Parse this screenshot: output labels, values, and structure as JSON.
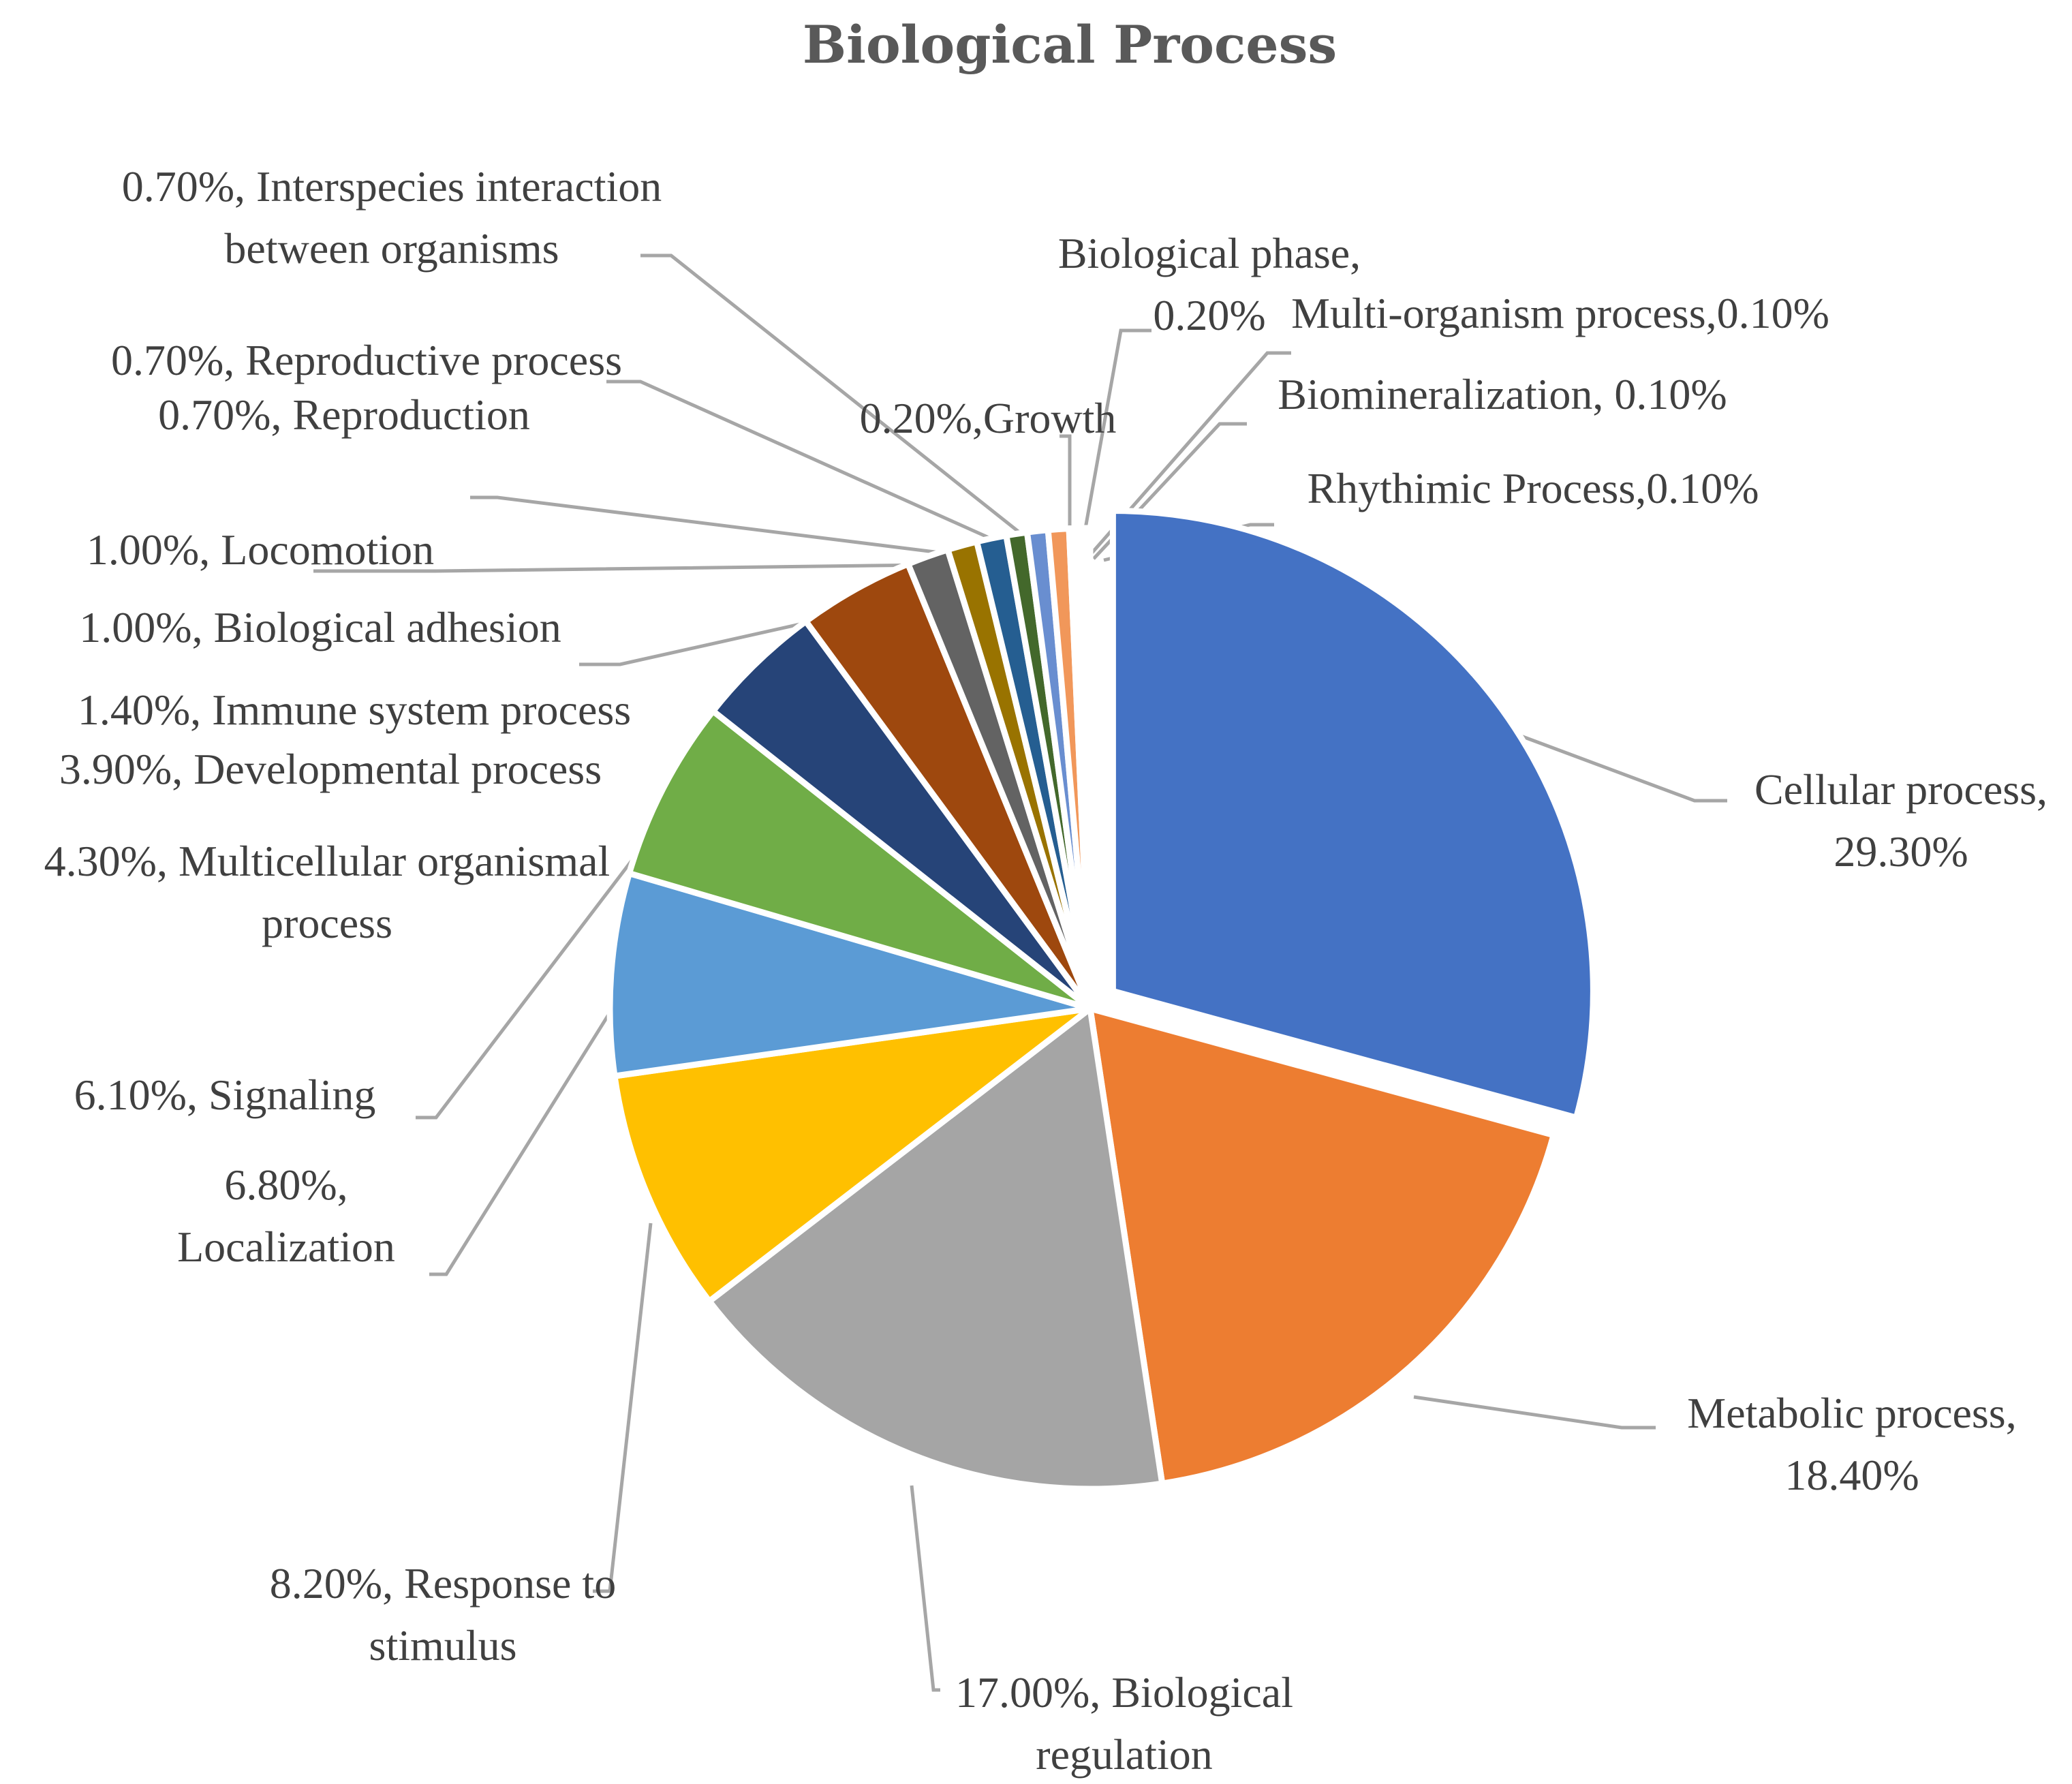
{
  "chart_data": {
    "type": "pie",
    "title": "Biological Process",
    "unit": "%",
    "slices": [
      {
        "name": "Cellular process",
        "value": 29.3,
        "color": "#4472C4",
        "label_lines": [
          "Cellular process,",
          "29.30%"
        ]
      },
      {
        "name": "Metabolic process",
        "value": 18.4,
        "color": "#ED7D31",
        "label_lines": [
          "Metabolic process,",
          "18.40%"
        ]
      },
      {
        "name": "Biological regulation",
        "value": 17.0,
        "color": "#A5A5A5",
        "label_lines": [
          "17.00%, Biological",
          "regulation"
        ]
      },
      {
        "name": "Response to stimulus",
        "value": 8.2,
        "color": "#FFC000",
        "label_lines": [
          "8.20%, Response to",
          "stimulus"
        ]
      },
      {
        "name": "Localization",
        "value": 6.8,
        "color": "#5B9BD5",
        "label_lines": [
          "6.80%,",
          "Localization"
        ]
      },
      {
        "name": "Signaling",
        "value": 6.1,
        "color": "#70AD47",
        "label_lines": [
          "6.10%, Signaling"
        ]
      },
      {
        "name": "Multicellular organismal process",
        "value": 4.3,
        "color": "#264478",
        "label_lines": [
          "4.30%, Multicellular organismal",
          "process"
        ]
      },
      {
        "name": "Developmental process",
        "value": 3.9,
        "color": "#9E480E",
        "label_lines": [
          "3.90%, Developmental process"
        ]
      },
      {
        "name": "Immune system process",
        "value": 1.4,
        "color": "#636363",
        "label_lines": [
          "1.40%, Immune system process"
        ]
      },
      {
        "name": "Biological adhesion",
        "value": 1.0,
        "color": "#997300",
        "label_lines": [
          "1.00%, Biological adhesion"
        ]
      },
      {
        "name": "Locomotion",
        "value": 1.0,
        "color": "#255E91",
        "label_lines": [
          "1.00%, Locomotion"
        ]
      },
      {
        "name": "Reproduction",
        "value": 0.7,
        "color": "#43682B",
        "label_lines": [
          "0.70%, Reproduction"
        ]
      },
      {
        "name": "Reproductive process",
        "value": 0.7,
        "color": "#698ED0",
        "label_lines": [
          "0.70%, Reproductive process"
        ]
      },
      {
        "name": "Interspecies interaction between organisms",
        "value": 0.7,
        "color": "#F1975A",
        "label_lines": [
          "0.70%, Interspecies interaction",
          "between organisms"
        ]
      },
      {
        "name": "Growth",
        "value": 0.2,
        "color": "#B7B7B7",
        "label_lines": [
          "0.20%,Growth"
        ]
      },
      {
        "name": "Biological phase",
        "value": 0.2,
        "color": "#FFCD33",
        "label_lines": [
          "Biological phase,",
          "0.20%"
        ]
      },
      {
        "name": "Multi-organism process",
        "value": 0.1,
        "color": "#7CAFDD",
        "label_lines": [
          "Multi-organism process,0.10%"
        ]
      },
      {
        "name": "Biomineralization",
        "value": 0.1,
        "color": "#8CC168",
        "label_lines": [
          "Biomineralization, 0.10%"
        ]
      },
      {
        "name": "Rhythimic Process",
        "value": 0.1,
        "color": "#335AA1",
        "label_lines": [
          "Rhythimic Process,0.10%"
        ]
      }
    ]
  }
}
